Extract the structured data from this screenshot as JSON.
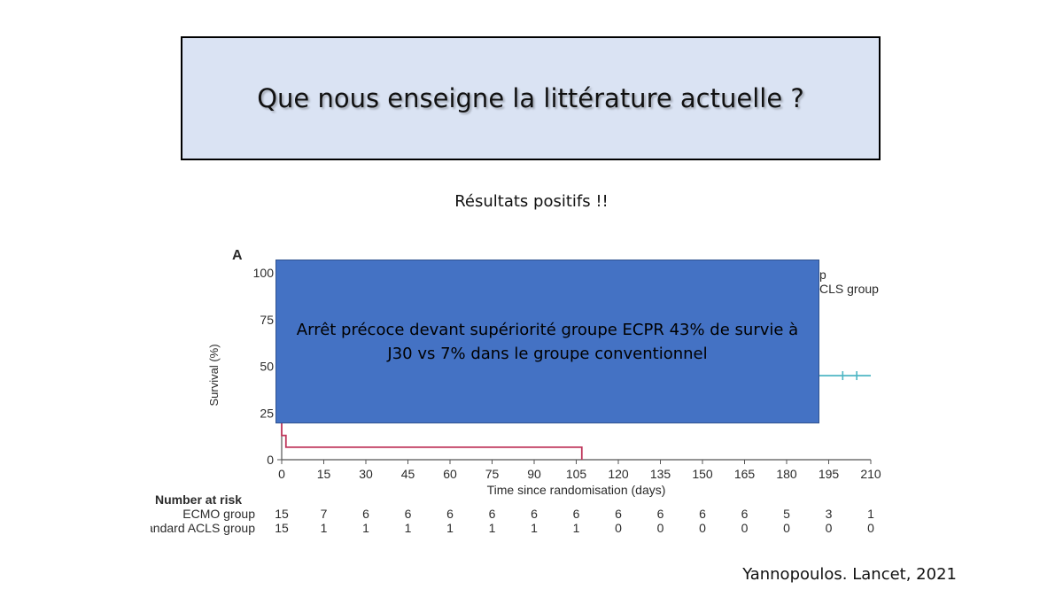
{
  "slide": {
    "title": "Que nous enseigne la littérature actuelle ?",
    "subtitle": "Résultats positifs !!",
    "overlay_text": "Arrêt précoce devant supériorité groupe ECPR 43% de survie à J30 vs 7% dans le groupe conventionnel",
    "citation": "Yannopoulos. Lancet, 2021"
  },
  "chart_data": {
    "type": "line",
    "panel_label": "A",
    "xlabel": "Time since randomisation (days)",
    "ylabel": "Survival (%)",
    "xlim": [
      0,
      210
    ],
    "ylim": [
      0,
      100
    ],
    "x_ticks": [
      0,
      15,
      30,
      45,
      60,
      75,
      90,
      105,
      120,
      135,
      150,
      165,
      180,
      195,
      210
    ],
    "y_ticks": [
      0,
      25,
      50,
      75,
      100
    ],
    "legend_partial": [
      "p",
      "CLS group"
    ],
    "series": [
      {
        "name": "ECMO group",
        "color": "#4db6c4",
        "visible_steps": [
          [
            188,
            45
          ],
          [
            210,
            45
          ]
        ],
        "censor_marks": [
          200,
          205
        ]
      },
      {
        "name": "Standard ACLS group",
        "color": "#c0395d",
        "steps": [
          [
            0,
            100
          ],
          [
            0,
            13
          ],
          [
            1.5,
            13
          ],
          [
            1.5,
            6.7
          ],
          [
            107,
            6.7
          ],
          [
            107,
            0
          ]
        ]
      }
    ],
    "risk_table": {
      "title": "Number at risk",
      "rows": [
        {
          "label": "ECMO group",
          "values": [
            "15",
            "7",
            "6",
            "6",
            "6",
            "6",
            "6",
            "6",
            "6",
            "6",
            "6",
            "6",
            "5",
            "3",
            "1"
          ]
        },
        {
          "label": "Standard ACLS group",
          "values": [
            "15",
            "1",
            "1",
            "1",
            "1",
            "1",
            "1",
            "1",
            "0",
            "0",
            "0",
            "0",
            "0",
            "0",
            "0"
          ]
        }
      ]
    }
  }
}
